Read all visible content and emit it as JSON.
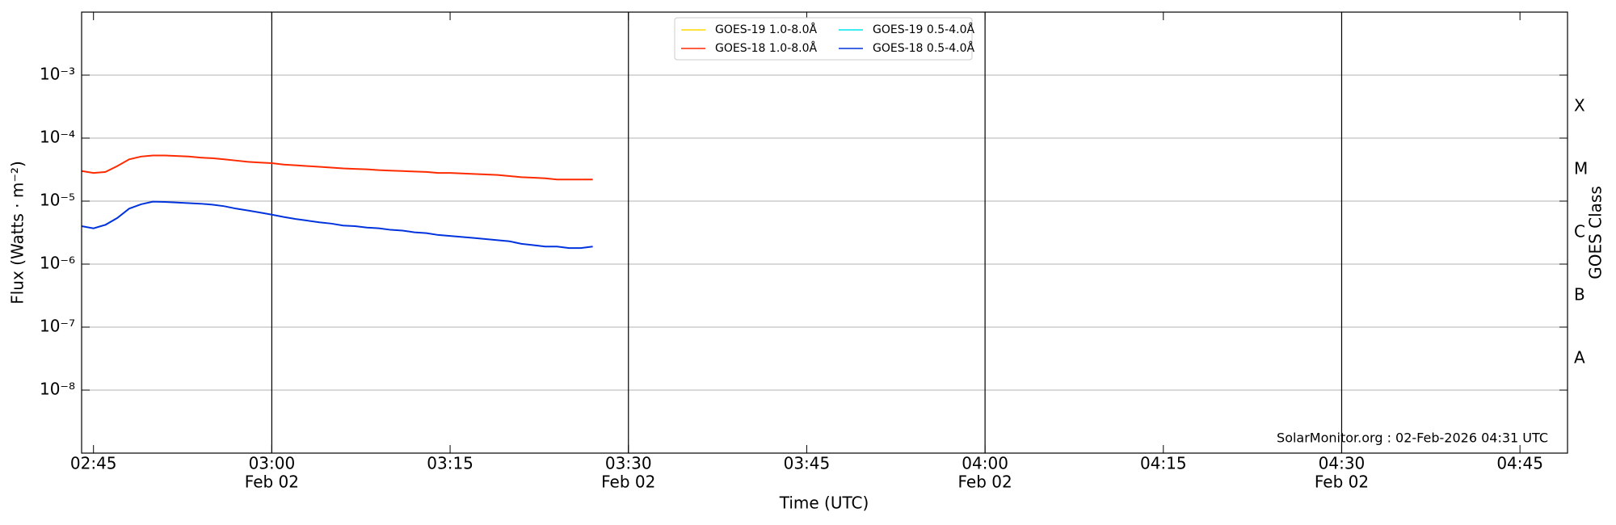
{
  "chart_data": {
    "type": "line",
    "ylabel": "Flux (Watts · m⁻²)",
    "xlabel": "Time (UTC)",
    "y2label": "GOES Class",
    "annotation": "SolarMonitor.org : 02-Feb-2026 04:31 UTC",
    "log_y": true,
    "grid": true,
    "legend": "upper center",
    "x": [
      "02:44",
      "02:45",
      "02:46",
      "02:47",
      "02:48",
      "02:49",
      "02:50",
      "02:51",
      "02:52",
      "02:53",
      "02:54",
      "02:55",
      "02:56",
      "02:57",
      "02:58",
      "02:59",
      "03:00",
      "03:01",
      "03:02",
      "03:03",
      "03:04",
      "03:05",
      "03:06",
      "03:07",
      "03:08",
      "03:09",
      "03:10",
      "03:11",
      "03:12",
      "03:13",
      "03:14",
      "03:15",
      "03:16",
      "03:17",
      "03:18",
      "03:19",
      "03:20",
      "03:21",
      "03:22",
      "03:23",
      "03:24",
      "03:25",
      "03:26",
      "03:27"
    ],
    "series": [
      {
        "name": "GOES-19 1.0-8.0Å",
        "color": "#ffd700",
        "values": [
          null,
          null,
          null,
          null,
          null,
          null,
          null,
          null,
          null,
          null,
          null,
          null,
          null,
          null,
          null,
          null,
          null,
          null,
          null,
          null,
          null,
          null,
          null,
          null,
          null,
          null,
          null,
          null,
          null,
          null,
          null,
          null,
          null,
          null,
          null,
          null,
          null,
          null,
          null,
          null,
          null,
          null,
          null,
          null
        ]
      },
      {
        "name": "GOES-18 1.0-8.0Å",
        "color": "#ff2a00",
        "values": [
          3e-05,
          2.8e-05,
          2.9e-05,
          3.6e-05,
          4.6e-05,
          5.1e-05,
          5.3e-05,
          5.3e-05,
          5.2e-05,
          5.1e-05,
          4.9e-05,
          4.8e-05,
          4.6e-05,
          4.4e-05,
          4.2e-05,
          4.1e-05,
          4e-05,
          3.8e-05,
          3.7e-05,
          3.6e-05,
          3.5e-05,
          3.4e-05,
          3.3e-05,
          3.25e-05,
          3.2e-05,
          3.1e-05,
          3.05e-05,
          3e-05,
          2.95e-05,
          2.9e-05,
          2.8e-05,
          2.8e-05,
          2.75e-05,
          2.7e-05,
          2.65e-05,
          2.6e-05,
          2.5e-05,
          2.4e-05,
          2.35e-05,
          2.3e-05,
          2.2e-05,
          2.2e-05,
          2.2e-05,
          2.2e-05
        ]
      },
      {
        "name": "GOES-19 0.5-4.0Å",
        "color": "#00e5ee",
        "values": [
          null,
          null,
          null,
          null,
          null,
          null,
          null,
          null,
          null,
          null,
          null,
          null,
          null,
          null,
          null,
          null,
          null,
          null,
          null,
          null,
          null,
          null,
          null,
          null,
          null,
          null,
          null,
          null,
          null,
          null,
          null,
          null,
          null,
          null,
          null,
          null,
          null,
          null,
          null,
          null,
          null,
          null,
          null,
          null
        ]
      },
      {
        "name": "GOES-18 0.5-4.0Å",
        "color": "#0033dd",
        "values": [
          4e-06,
          3.7e-06,
          4.2e-06,
          5.4e-06,
          7.6e-06,
          8.9e-06,
          9.8e-06,
          9.7e-06,
          9.5e-06,
          9.3e-06,
          9.1e-06,
          8.8e-06,
          8.3e-06,
          7.6e-06,
          7.1e-06,
          6.6e-06,
          6.1e-06,
          5.6e-06,
          5.2e-06,
          4.9e-06,
          4.6e-06,
          4.4e-06,
          4.1e-06,
          4e-06,
          3.8e-06,
          3.7e-06,
          3.5e-06,
          3.4e-06,
          3.2e-06,
          3.1e-06,
          2.9e-06,
          2.8e-06,
          2.7e-06,
          2.6e-06,
          2.5e-06,
          2.4e-06,
          2.3e-06,
          2.1e-06,
          2e-06,
          1.9e-06,
          1.9e-06,
          1.8e-06,
          1.8e-06,
          1.9e-06
        ]
      }
    ],
    "xlim": [
      "02:44",
      "04:49"
    ],
    "xticks": [
      "02:45",
      "03:00",
      "03:15",
      "03:30",
      "03:45",
      "04:00",
      "04:15",
      "04:30",
      "04:45"
    ],
    "xtick_date_labels": [
      null,
      "Feb 02",
      null,
      "Feb 02",
      null,
      "Feb 02",
      null,
      "Feb 02",
      null
    ],
    "ylim": [
      1e-09,
      0.01
    ],
    "yticks": [
      {
        "value": 1e-08,
        "label": "10⁻⁸"
      },
      {
        "value": 1e-07,
        "label": "10⁻⁷"
      },
      {
        "value": 1e-06,
        "label": "10⁻⁶"
      },
      {
        "value": 1e-05,
        "label": "10⁻⁵"
      },
      {
        "value": 0.0001,
        "label": "10⁻⁴"
      },
      {
        "value": 0.001,
        "label": "10⁻³"
      }
    ],
    "y2lim": [
      1e-09,
      0.01
    ],
    "y2ticks": [
      {
        "value": 3.16e-08,
        "label": "A"
      },
      {
        "value": 3.16e-07,
        "label": "B"
      },
      {
        "value": 3.16e-06,
        "label": "C"
      },
      {
        "value": 3.16e-05,
        "label": "M"
      },
      {
        "value": 0.000316,
        "label": "X"
      }
    ]
  }
}
